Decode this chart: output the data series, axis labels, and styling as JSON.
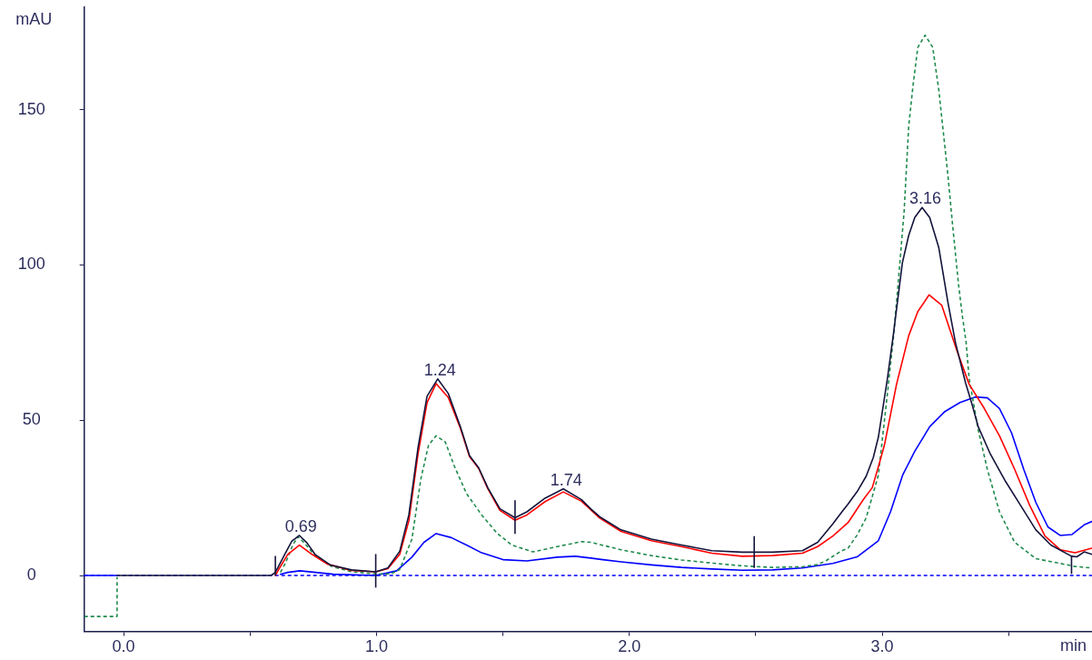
{
  "chart_data": {
    "type": "line",
    "xlabel": "min",
    "ylabel": "mAU",
    "marker": "none",
    "xlim": [
      -0.156,
      3.83
    ],
    "ylim": [
      -18,
      183
    ],
    "xticks": [
      {
        "value": 0,
        "label": "0.0"
      },
      {
        "value": 0.5,
        "label": null
      },
      {
        "value": 1,
        "label": "1.0"
      },
      {
        "value": 1.5,
        "label": null
      },
      {
        "value": 2,
        "label": "2.0"
      },
      {
        "value": 2.5,
        "label": null
      },
      {
        "value": 3,
        "label": "3.0"
      },
      {
        "value": 3.5,
        "label": null
      }
    ],
    "yticks": [
      0,
      50,
      100,
      150
    ],
    "series": [
      {
        "color": "#14143c",
        "x": [
          -0.026,
          0.583,
          0.6,
          0.637,
          0.665,
          0.695,
          0.725,
          0.757,
          0.817,
          0.901,
          0.997,
          1.045,
          1.092,
          1.128,
          1.164,
          1.2,
          1.242,
          1.284,
          1.332,
          1.368,
          1.404,
          1.44,
          1.488,
          1.548,
          1.595,
          1.667,
          1.739,
          1.811,
          1.847,
          1.883,
          1.967,
          2.087,
          2.206,
          2.326,
          2.446,
          2.494,
          2.566,
          2.685,
          2.745,
          2.805,
          2.841,
          2.865,
          2.901,
          2.937,
          2.965,
          2.985,
          3.021,
          3.045,
          3.08,
          3.105,
          3.129,
          3.158,
          3.188,
          3.224,
          3.26,
          3.29,
          3.33,
          3.356,
          3.38,
          3.428,
          3.488,
          3.548,
          3.608,
          3.667,
          3.749,
          3.77,
          3.799,
          3.83
        ],
        "values": [
          0,
          0,
          1,
          6.8,
          11,
          12.9,
          10.5,
          6.8,
          3.4,
          1.8,
          1.2,
          2.4,
          7.8,
          19.5,
          41,
          57.7,
          63.3,
          58.6,
          47.9,
          38.6,
          34.7,
          28.3,
          21.5,
          18.6,
          20.5,
          24.9,
          27.9,
          24.4,
          21.5,
          18.9,
          14.7,
          11.7,
          9.8,
          8,
          7.5,
          7.5,
          7.5,
          8,
          10.7,
          16.6,
          20.5,
          23,
          27,
          32,
          38,
          44.5,
          63.5,
          78,
          100.7,
          109.5,
          115.3,
          118.5,
          115.3,
          105.6,
          88,
          75,
          62,
          55,
          47.9,
          39.1,
          30.3,
          22.5,
          14.7,
          9.8,
          6.2,
          6,
          7.6,
          6.8
        ],
        "errors": [
          null,
          null,
          [
            0,
            6.3
          ],
          null,
          null,
          null,
          null,
          null,
          null,
          null,
          [
            -3.9,
            6.9
          ],
          null,
          null,
          null,
          null,
          null,
          null,
          null,
          null,
          null,
          null,
          null,
          null,
          [
            13.4,
            24.2
          ],
          null,
          null,
          null,
          null,
          null,
          null,
          null,
          null,
          null,
          null,
          null,
          [
            2.4,
            12.7
          ],
          null,
          null,
          null,
          null,
          null,
          null,
          null,
          null,
          null,
          null,
          null,
          null,
          null,
          null,
          null,
          null,
          null,
          null,
          null,
          null,
          null,
          null,
          null,
          null,
          null,
          null,
          null,
          null,
          [
            0.5,
            6.3
          ],
          null,
          null,
          null
        ]
      },
      {
        "color": "#ff0000",
        "x": [
          0.6,
          0.613,
          0.649,
          0.695,
          0.745,
          0.805,
          0.9,
          0.997,
          1.045,
          1.092,
          1.128,
          1.164,
          1.2,
          1.236,
          1.284,
          1.332,
          1.368,
          1.404,
          1.44,
          1.488,
          1.548,
          1.595,
          1.667,
          1.739,
          1.811,
          1.883,
          1.967,
          2.087,
          2.206,
          2.326,
          2.446,
          2.566,
          2.685,
          2.745,
          2.805,
          2.865,
          2.925,
          2.961,
          2.985,
          3.009,
          3.057,
          3.105,
          3.141,
          3.186,
          3.236,
          3.272,
          3.296,
          3.344,
          3.404,
          3.464,
          3.524,
          3.584,
          3.644,
          3.704,
          3.763,
          3.83
        ],
        "values": [
          0,
          1.9,
          6.8,
          9.8,
          6.8,
          3.7,
          1.6,
          1.2,
          2.2,
          6.8,
          17.6,
          39,
          55.7,
          61.8,
          57.3,
          47.4,
          38.3,
          34.5,
          28,
          21,
          17.8,
          19.5,
          23.8,
          26.9,
          23.9,
          18.5,
          14.2,
          11.2,
          9.3,
          7.2,
          6.2,
          6.4,
          7.2,
          9.3,
          12.7,
          17,
          24.4,
          28.3,
          35,
          42,
          61.6,
          77.2,
          85,
          90.4,
          87,
          78.2,
          72.3,
          61.6,
          53.8,
          45,
          34.2,
          22.5,
          12.7,
          8.3,
          7.3,
          8.8
        ]
      },
      {
        "color": "#1f8a4c",
        "line_style": "dashed",
        "x": [
          -0.156,
          -0.026,
          -0.026,
          0.3,
          0.62,
          0.64,
          0.67,
          0.69,
          0.72,
          0.75,
          0.82,
          0.9,
          1,
          1.056,
          1.092,
          1.14,
          1.176,
          1.206,
          1.236,
          1.272,
          1.308,
          1.356,
          1.416,
          1.476,
          1.535,
          1.619,
          1.715,
          1.811,
          1.847,
          1.931,
          1.967,
          2.087,
          2.206,
          2.326,
          2.446,
          2.566,
          2.685,
          2.745,
          2.781,
          2.841,
          2.865,
          2.901,
          2.937,
          2.985,
          3.021,
          3.045,
          3.063,
          3.087,
          3.105,
          3.123,
          3.141,
          3.17,
          3.2,
          3.224,
          3.242,
          3.26,
          3.278,
          3.302,
          3.318,
          3.332,
          3.344,
          3.38,
          3.416,
          3.464,
          3.524,
          3.608,
          3.704,
          3.763,
          3.83
        ],
        "values": [
          -13.2,
          -13.2,
          -0.5,
          null,
          1,
          4,
          10,
          12.5,
          10,
          7,
          3,
          1.2,
          0.5,
          0.5,
          1.9,
          11.7,
          31.3,
          42,
          45,
          43,
          35.2,
          26.4,
          19.5,
          13.7,
          9.8,
          7.6,
          9.3,
          10.9,
          10.7,
          9,
          8.3,
          6.4,
          5,
          4,
          3.1,
          2.6,
          2.8,
          3.5,
          4.9,
          8,
          8.8,
          13,
          18.6,
          32.3,
          58.7,
          77,
          93.8,
          117.3,
          144.7,
          158.4,
          170.1,
          174,
          170.1,
          156.4,
          142.7,
          129,
          113.4,
          93.8,
          83.1,
          75.2,
          63.5,
          46.9,
          34.2,
          20.5,
          10.7,
          5.4,
          3.9,
          2.9,
          2.4
        ]
      },
      {
        "color": "#0000ff",
        "x": [
          -0.156,
          -0.03,
          0.3,
          0.62,
          0.649,
          0.697,
          0.829,
          0.997,
          1.08,
          1.14,
          1.188,
          1.236,
          1.296,
          1.356,
          1.416,
          1.5,
          1.595,
          1.715,
          1.787,
          1.847,
          1.895,
          1.967,
          2.087,
          2.206,
          2.326,
          2.446,
          2.566,
          2.685,
          2.805,
          2.901,
          2.985,
          3.033,
          3.081,
          3.129,
          3.188,
          3.248,
          3.308,
          3.368,
          3.416,
          3.464,
          3.512,
          3.56,
          3.608,
          3.656,
          3.704,
          3.751,
          3.799,
          3.83
        ],
        "values": [
          0,
          0,
          null,
          0.4,
          1,
          1.5,
          0.4,
          0,
          1.5,
          5.9,
          10.7,
          13.5,
          12.2,
          9.8,
          7.3,
          5.1,
          4.7,
          5.9,
          6.2,
          5.6,
          5.1,
          4.4,
          3.4,
          2.6,
          2.1,
          1.7,
          1.8,
          2.4,
          3.9,
          6,
          11.2,
          20.5,
          32.3,
          40,
          47.9,
          52.8,
          55.7,
          57.5,
          57.2,
          53.8,
          45.9,
          34.2,
          23.5,
          15.6,
          12.9,
          13.2,
          16.3,
          17.4
        ]
      }
    ],
    "ref_lines": [
      {
        "axis": "y",
        "value": 0,
        "color": "#0000ff",
        "line_style": "dashed"
      }
    ],
    "annotations": [
      {
        "text": "0.69",
        "x": 0.69,
        "y": 12.9
      },
      {
        "text": "1.24",
        "x": 1.24,
        "y": 63.3
      },
      {
        "text": "1.74",
        "x": 1.74,
        "y": 27.9
      },
      {
        "text": "3.16",
        "x": 3.16,
        "y": 118.5
      }
    ]
  }
}
